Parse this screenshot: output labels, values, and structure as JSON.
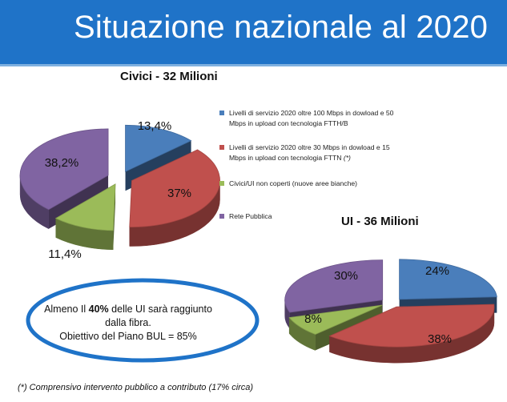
{
  "slide": {
    "title": "Situazione nazionale al 2020"
  },
  "chart_data": [
    {
      "type": "pie",
      "title": "Civici - 32 Milioni",
      "slices": [
        {
          "label": "Livelli di servizio 2020 oltre 100 Mbps in dowload e 50 Mbps in upload con tecnologia FTTH/B",
          "value": 13.4,
          "display": "13,4%",
          "color": "#4a7ebb"
        },
        {
          "label": "Livelli di servizio 2020 oltre 30 Mbps in dowload e 15 Mbps in upload con tecnologia FTTN",
          "value": 37,
          "display": "37%",
          "color": "#c0504d"
        },
        {
          "label": "Civici/UI non coperti (nuove aree bianche)",
          "value": 11.4,
          "display": "11,4%",
          "color": "#9bbb59"
        },
        {
          "label": "Rete Pubblica",
          "value": 38.2,
          "display": "38,2%",
          "color": "#8064a2"
        }
      ]
    },
    {
      "type": "pie",
      "title": "UI - 36 Milioni",
      "slices": [
        {
          "value": 24,
          "display": "24%",
          "color": "#4a7ebb"
        },
        {
          "value": 38,
          "display": "38%",
          "color": "#c0504d"
        },
        {
          "value": 8,
          "display": "8%",
          "color": "#9bbb59"
        },
        {
          "value": 30,
          "display": "30%",
          "color": "#8064a2"
        }
      ]
    }
  ],
  "legend": {
    "items": [
      {
        "text": "Livelli di servizio 2020 oltre 100 Mbps in dowload e 50 Mbps in upload con tecnologia FTTH/B",
        "note": "",
        "color": "#4a7ebb"
      },
      {
        "text": "Livelli di servizio 2020 oltre 30 Mbps in dowload e 15 Mbps in upload con tecnologia FTTN",
        "note": "(*)",
        "color": "#c0504d"
      },
      {
        "text": "Civici/UI non coperti (nuove aree bianche)",
        "note": "",
        "color": "#9bbb59"
      },
      {
        "text": "Rete Pubblica",
        "note": "",
        "color": "#8064a2"
      }
    ]
  },
  "callout": {
    "line1_pre": "Almeno Il ",
    "line1_bold": "40%",
    "line1_post": " delle UI sarà raggiunto",
    "line2": "dalla fibra.",
    "line3": "Obiettivo del Piano BUL = 85%"
  },
  "footnote": "(*) Comprensivo intervento pubblico a contributo (17% circa)"
}
